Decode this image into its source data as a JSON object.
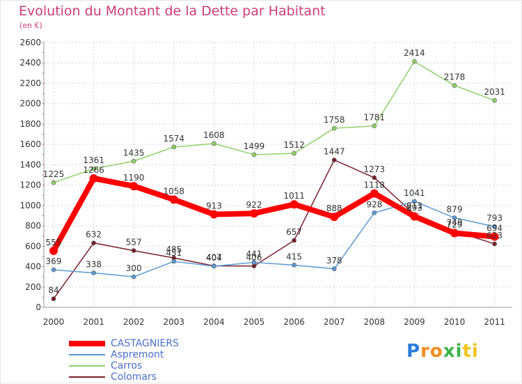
{
  "chart_data": {
    "type": "line",
    "title": "Evolution du Montant de la Dette par Habitant",
    "subtitle": "(en €)",
    "categories": [
      "2000",
      "2001",
      "2002",
      "2003",
      "2004",
      "2005",
      "2006",
      "2007",
      "2008",
      "2009",
      "2010",
      "2011"
    ],
    "yticks": [
      "0",
      "200",
      "400",
      "600",
      "800",
      "1000",
      "1200",
      "1400",
      "1600",
      "1800",
      "2000",
      "2200",
      "2400",
      "2600"
    ],
    "ylim": [
      0,
      2600
    ],
    "grid": true,
    "legend_position": "bottom-left",
    "series": [
      {
        "name": "CASTAGNIERS",
        "color": "#ff0000",
        "values": [
          555,
          1266,
          1190,
          1058,
          913,
          922,
          1011,
          888,
          1118,
          893,
          729,
          694
        ],
        "labels": [
          "555",
          "1266",
          "1190",
          "1058",
          "913",
          "922",
          "1011",
          "888",
          "1118",
          "893",
          "729",
          "694"
        ]
      },
      {
        "name": "Aspremont",
        "color": "#5b9bd5",
        "values": [
          369,
          338,
          300,
          451,
          404,
          441,
          415,
          378,
          928,
          1041,
          879,
          793
        ],
        "labels": [
          "369",
          "338",
          "300",
          "451",
          "404",
          "441",
          "415",
          "378",
          "928",
          "1041",
          "879",
          "793"
        ]
      },
      {
        "name": "Carros",
        "color": "#8fd16a",
        "values": [
          1225,
          1361,
          1435,
          1574,
          1608,
          1499,
          1512,
          1758,
          1781,
          2414,
          2178,
          2031
        ],
        "labels": [
          "1225",
          "1361",
          "1435",
          "1574",
          "1608",
          "1499",
          "1512",
          "1758",
          "1781",
          "2414",
          "2178",
          "2031"
        ]
      },
      {
        "name": "Colomars",
        "color": "#7a1f2b",
        "values": [
          84,
          632,
          557,
          485,
          407,
          406,
          657,
          1447,
          1273,
          913,
          749,
          623
        ],
        "labels": [
          "84",
          "632",
          "557",
          "485",
          "407",
          "406",
          "657",
          "1447",
          "1273",
          "913",
          "749",
          "623"
        ]
      }
    ]
  },
  "logo": {
    "letters": [
      "P",
      "r",
      "o",
      "x",
      "i",
      "t",
      "i"
    ],
    "colors": [
      "#2b7bd9",
      "#f28c1c",
      "#f28c1c",
      "#3bb34a",
      "#3bb34a",
      "#f2c31c",
      "#f2c31c"
    ]
  }
}
